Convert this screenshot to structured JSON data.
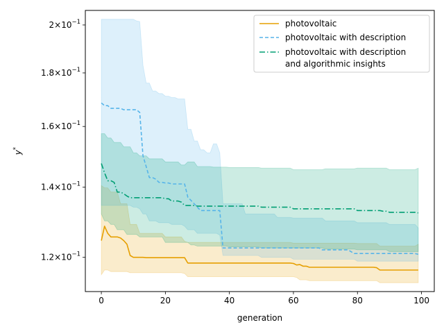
{
  "chart_data": {
    "type": "line",
    "xlabel": "generation",
    "ylabel": "y*",
    "xlim": [
      -5,
      104
    ],
    "ylim": [
      0.1113,
      0.2065
    ],
    "yscale": "log",
    "grid": false,
    "legend_position": "upper-right",
    "x_ticks": [
      0,
      20,
      40,
      60,
      80,
      100
    ],
    "x_tick_labels": [
      "0",
      "20",
      "40",
      "60",
      "80",
      "100"
    ],
    "y_ticks": [
      0.12,
      0.14,
      0.16,
      0.18,
      0.2
    ],
    "y_tick_labels": [
      {
        "mant": "1.2",
        "exp": "−1"
      },
      {
        "mant": "1.4",
        "exp": "−1"
      },
      {
        "mant": "1.6",
        "exp": "−1"
      },
      {
        "mant": "1.8",
        "exp": "−1"
      },
      {
        "mant": "2",
        "exp": "−1"
      }
    ],
    "series": [
      {
        "name": "photovoltaic",
        "color": "#E69F00",
        "dash": "solid",
        "points": [
          [
            0,
            0.1245
          ],
          [
            1,
            0.1285
          ],
          [
            2,
            0.1265
          ],
          [
            3,
            0.1255
          ],
          [
            6,
            0.1252
          ],
          [
            7,
            0.1245
          ],
          [
            8,
            0.1235
          ],
          [
            9,
            0.1205
          ],
          [
            10,
            0.12
          ],
          [
            14,
            0.1199
          ],
          [
            26,
            0.1199
          ],
          [
            27,
            0.1185
          ],
          [
            50,
            0.1185
          ],
          [
            60,
            0.1184
          ],
          [
            61,
            0.118
          ],
          [
            62,
            0.1181
          ],
          [
            63,
            0.1177
          ],
          [
            65,
            0.1174
          ],
          [
            86,
            0.1173
          ],
          [
            87,
            0.1167
          ],
          [
            99,
            0.1167
          ]
        ],
        "band_upper": [
          [
            0,
            0.1405
          ],
          [
            1,
            0.1398
          ],
          [
            3,
            0.1385
          ],
          [
            6,
            0.135
          ],
          [
            9,
            0.129
          ],
          [
            12,
            0.1265
          ],
          [
            20,
            0.1255
          ],
          [
            26,
            0.1243
          ],
          [
            27,
            0.124
          ],
          [
            40,
            0.124
          ],
          [
            60,
            0.1238
          ],
          [
            80,
            0.1237
          ],
          [
            87,
            0.123
          ],
          [
            99,
            0.1235
          ]
        ],
        "band_lower": [
          [
            0,
            0.1155
          ],
          [
            1,
            0.1167
          ],
          [
            3,
            0.1163
          ],
          [
            9,
            0.116
          ],
          [
            26,
            0.1158
          ],
          [
            27,
            0.115
          ],
          [
            61,
            0.1148
          ],
          [
            62,
            0.1142
          ],
          [
            65,
            0.114
          ],
          [
            86,
            0.114
          ],
          [
            87,
            0.1135
          ],
          [
            99,
            0.1135
          ]
        ]
      },
      {
        "name": "photovoltaic with description",
        "color": "#56B4E9",
        "dash": "dashed",
        "points": [
          [
            0,
            0.1685
          ],
          [
            1,
            0.1675
          ],
          [
            3,
            0.1665
          ],
          [
            6,
            0.1665
          ],
          [
            7,
            0.166
          ],
          [
            10,
            0.166
          ],
          [
            12,
            0.165
          ],
          [
            13,
            0.15
          ],
          [
            14,
            0.1465
          ],
          [
            15,
            0.143
          ],
          [
            17,
            0.1425
          ],
          [
            18,
            0.1415
          ],
          [
            20,
            0.1413
          ],
          [
            22,
            0.141
          ],
          [
            26,
            0.141
          ],
          [
            27,
            0.137
          ],
          [
            28,
            0.136
          ],
          [
            29,
            0.135
          ],
          [
            30,
            0.134
          ],
          [
            31,
            0.133
          ],
          [
            37,
            0.133
          ],
          [
            38,
            0.1225
          ],
          [
            68,
            0.1225
          ],
          [
            69,
            0.122
          ],
          [
            78,
            0.1215
          ],
          [
            79,
            0.121
          ],
          [
            99,
            0.1208
          ]
        ],
        "band_upper": [
          [
            0,
            0.2025
          ],
          [
            11,
            0.2018
          ],
          [
            12,
            0.2015
          ],
          [
            13,
            0.183
          ],
          [
            14,
            0.176
          ],
          [
            16,
            0.173
          ],
          [
            18,
            0.172
          ],
          [
            20,
            0.171
          ],
          [
            22,
            0.1705
          ],
          [
            24,
            0.17
          ],
          [
            26,
            0.17
          ],
          [
            27,
            0.159
          ],
          [
            29,
            0.155
          ],
          [
            31,
            0.152
          ],
          [
            33,
            0.151
          ],
          [
            35,
            0.154
          ],
          [
            37,
            0.151
          ],
          [
            38,
            0.135
          ],
          [
            45,
            0.132
          ],
          [
            55,
            0.131
          ],
          [
            60,
            0.1308
          ],
          [
            70,
            0.13
          ],
          [
            80,
            0.1295
          ],
          [
            90,
            0.129
          ],
          [
            99,
            0.128
          ]
        ],
        "band_lower": [
          [
            0,
            0.1345
          ],
          [
            10,
            0.134
          ],
          [
            12,
            0.1335
          ],
          [
            13,
            0.132
          ],
          [
            15,
            0.13
          ],
          [
            18,
            0.1295
          ],
          [
            22,
            0.129
          ],
          [
            26,
            0.1285
          ],
          [
            27,
            0.1275
          ],
          [
            30,
            0.1265
          ],
          [
            37,
            0.126
          ],
          [
            38,
            0.1205
          ],
          [
            50,
            0.12
          ],
          [
            60,
            0.1195
          ],
          [
            70,
            0.1195
          ],
          [
            80,
            0.119
          ],
          [
            90,
            0.119
          ],
          [
            99,
            0.119
          ]
        ]
      },
      {
        "name": "photovoltaic with description and algorithmic insights",
        "color": "#009E73",
        "dash": "dashdot",
        "points": [
          [
            0,
            0.1475
          ],
          [
            1,
            0.1445
          ],
          [
            2,
            0.142
          ],
          [
            4,
            0.1415
          ],
          [
            5,
            0.1385
          ],
          [
            7,
            0.138
          ],
          [
            8,
            0.1373
          ],
          [
            9,
            0.1368
          ],
          [
            20,
            0.1365
          ],
          [
            22,
            0.1358
          ],
          [
            25,
            0.1355
          ],
          [
            26,
            0.1345
          ],
          [
            30,
            0.1343
          ],
          [
            40,
            0.1343
          ],
          [
            50,
            0.134
          ],
          [
            60,
            0.1335
          ],
          [
            70,
            0.1335
          ],
          [
            80,
            0.133
          ],
          [
            88,
            0.1328
          ],
          [
            90,
            0.1325
          ],
          [
            99,
            0.1323
          ]
        ],
        "band_upper": [
          [
            0,
            0.1575
          ],
          [
            2,
            0.156
          ],
          [
            4,
            0.1545
          ],
          [
            7,
            0.153
          ],
          [
            10,
            0.151
          ],
          [
            12,
            0.15
          ],
          [
            15,
            0.149
          ],
          [
            20,
            0.148
          ],
          [
            25,
            0.147
          ],
          [
            27,
            0.148
          ],
          [
            30,
            0.1465
          ],
          [
            35,
            0.1463
          ],
          [
            40,
            0.1462
          ],
          [
            50,
            0.146
          ],
          [
            60,
            0.1455
          ],
          [
            70,
            0.1458
          ],
          [
            80,
            0.146
          ],
          [
            90,
            0.1455
          ],
          [
            99,
            0.146
          ]
        ],
        "band_lower": [
          [
            0,
            0.132
          ],
          [
            1,
            0.13
          ],
          [
            3,
            0.129
          ],
          [
            5,
            0.1275
          ],
          [
            8,
            0.1262
          ],
          [
            12,
            0.1255
          ],
          [
            20,
            0.124
          ],
          [
            28,
            0.1233
          ],
          [
            30,
            0.123
          ],
          [
            40,
            0.1228
          ],
          [
            50,
            0.1225
          ],
          [
            60,
            0.1225
          ],
          [
            70,
            0.1222
          ],
          [
            80,
            0.122
          ],
          [
            90,
            0.1215
          ],
          [
            99,
            0.1215
          ]
        ]
      }
    ],
    "legend": [
      {
        "lines": [
          "photovoltaic"
        ]
      },
      {
        "lines": [
          "photovoltaic with description"
        ]
      },
      {
        "lines": [
          "photovoltaic with description",
          "and algorithmic insights"
        ]
      }
    ]
  }
}
